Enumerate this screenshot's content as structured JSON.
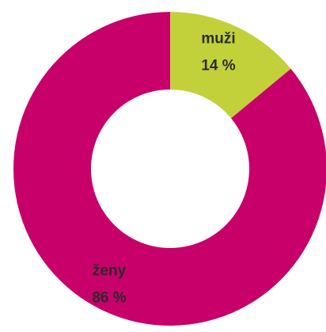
{
  "chart_data": {
    "type": "donut",
    "categories": [
      "muži",
      "ženy"
    ],
    "values": [
      14,
      86
    ],
    "value_labels": [
      "14 %",
      "86 %"
    ],
    "colors": [
      "#c2d13a",
      "#c8006a"
    ]
  }
}
